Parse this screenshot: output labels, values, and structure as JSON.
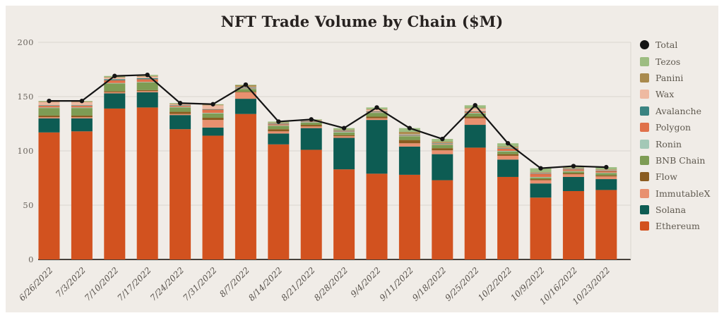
{
  "title": "NFT Trade Volume by Chain ($M)",
  "colors": {
    "background": "#f0ece7",
    "grid": "#dad6cf",
    "axis_line": "#46413b",
    "tick_label": "#6b655e",
    "date_label": "#56504a",
    "title": "#272220",
    "total_line": "#141414",
    "legend_text": "#5f594f"
  },
  "chart_data": {
    "type": "bar",
    "stacked": true,
    "title": "NFT Trade Volume by Chain ($M)",
    "xlabel": "",
    "ylabel": "",
    "ylim": [
      0,
      200
    ],
    "yticks": [
      0,
      50,
      100,
      150,
      200
    ],
    "grid": true,
    "legend_position": "right",
    "categories": [
      "6/26/2022",
      "7/3/2022",
      "7/10/2022",
      "7/17/2022",
      "7/24/2022",
      "7/31/2022",
      "8/7/2022",
      "8/14/2022",
      "8/21/2022",
      "8/28/2022",
      "9/4/2022",
      "9/11/2022",
      "9/18/2022",
      "9/25/2022",
      "10/2/2022",
      "10/9/2022",
      "10/16/2022",
      "10/23/2022"
    ],
    "stack_order_note": "series listed bottom-to-top of stack",
    "series": [
      {
        "name": "Ethereum",
        "color": "#d2521f",
        "values": [
          117,
          118,
          139,
          140,
          120,
          114,
          134,
          106,
          101,
          83,
          79,
          78,
          73,
          103,
          76,
          57,
          63,
          64
        ]
      },
      {
        "name": "Solana",
        "color": "#0d5c53",
        "values": [
          13,
          12,
          14,
          14,
          13,
          7.5,
          14,
          10,
          20,
          29,
          49.5,
          26,
          24,
          21,
          16,
          13,
          13,
          10
        ]
      },
      {
        "name": "ImmutableX",
        "color": "#e8906f",
        "values": [
          1,
          1,
          1,
          1,
          1,
          7,
          6,
          2,
          1.5,
          1.5,
          1.5,
          3,
          3.5,
          6,
          3.5,
          3,
          2.5,
          2.5
        ]
      },
      {
        "name": "Flow",
        "color": "#8a5c20",
        "values": [
          1.5,
          1.5,
          1,
          1,
          2,
          2,
          0.5,
          2,
          1.5,
          1,
          1.5,
          3,
          2,
          1.5,
          1.5,
          1,
          1,
          1
        ]
      },
      {
        "name": "BNB Chain",
        "color": "#7e9c54",
        "values": [
          7,
          7,
          7,
          7,
          4,
          4,
          2.5,
          3,
          2,
          2.5,
          3.5,
          3.5,
          3,
          3,
          2.5,
          1.5,
          1.5,
          2
        ]
      },
      {
        "name": "Ronin",
        "color": "#a3c8b6",
        "values": [
          0.5,
          0.5,
          0.5,
          0.5,
          0.5,
          0.5,
          0.5,
          0.5,
          0.5,
          0.5,
          0.5,
          0.5,
          0.5,
          0.5,
          0.5,
          0.5,
          0.5,
          0.5
        ]
      },
      {
        "name": "Polygon",
        "color": "#e0714a",
        "values": [
          1.5,
          1.5,
          2.5,
          2.5,
          1,
          3,
          0.5,
          1,
          0.5,
          0.5,
          0.5,
          0.5,
          0.5,
          1,
          2,
          3,
          1.5,
          1.5
        ]
      },
      {
        "name": "Avalanche",
        "color": "#3a8381",
        "values": [
          0.5,
          0.5,
          1,
          1,
          0.5,
          0.5,
          0.5,
          0.5,
          0.5,
          0.5,
          0.5,
          0.5,
          0.5,
          0.5,
          0.5,
          0.5,
          0.5,
          0.5
        ]
      },
      {
        "name": "Wax",
        "color": "#eeb9a1",
        "values": [
          3,
          3,
          1.5,
          1.5,
          1,
          3.5,
          0.5,
          0.5,
          0.5,
          0.5,
          1.5,
          0.5,
          0.5,
          2.5,
          0.5,
          0.5,
          0.5,
          0.5
        ]
      },
      {
        "name": "Panini",
        "color": "#a98a4d",
        "values": [
          0.5,
          0.5,
          0.5,
          0.5,
          0.5,
          0.5,
          1.5,
          0.5,
          0.5,
          0.5,
          0.5,
          2,
          1,
          0.5,
          1,
          0.5,
          0.5,
          0.5
        ]
      },
      {
        "name": "Tezos",
        "color": "#9dbd81",
        "values": [
          0.5,
          0.5,
          1,
          1,
          0.5,
          0.5,
          0.5,
          1,
          0.5,
          1.5,
          1.5,
          3.5,
          2.5,
          2.5,
          3,
          3.5,
          1.5,
          2
        ]
      }
    ],
    "total_series": {
      "name": "Total",
      "color": "#141414",
      "marker": "circle",
      "values": [
        146,
        146,
        169,
        170,
        144,
        143,
        161,
        127,
        129,
        121,
        140,
        121,
        111,
        142,
        107,
        84,
        86,
        85
      ]
    },
    "legend_top_to_bottom": [
      "Total",
      "Tezos",
      "Panini",
      "Wax",
      "Avalanche",
      "Polygon",
      "Ronin",
      "BNB Chain",
      "Flow",
      "ImmutableX",
      "Solana",
      "Ethereum"
    ]
  }
}
